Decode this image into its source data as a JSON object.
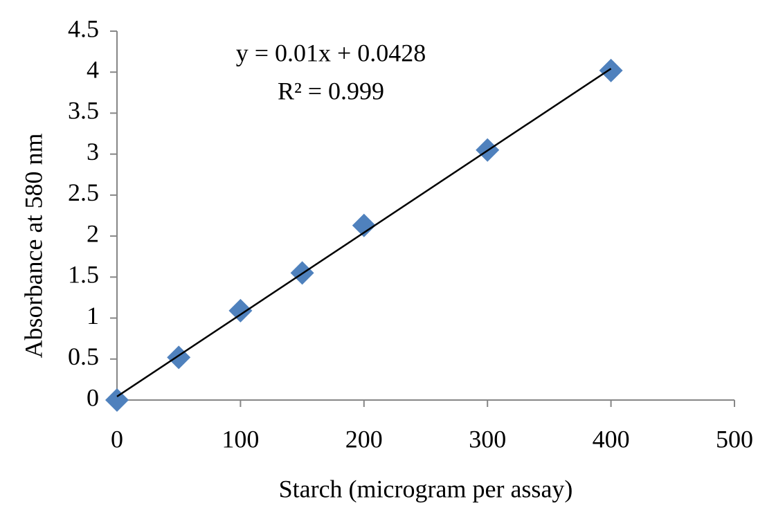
{
  "chart_data": {
    "type": "scatter",
    "x_label": "Starch (microgram per assay)",
    "y_label": "Absorbance at 580 nm",
    "series": [
      {
        "name": "Absorbance",
        "color": "#4f81bd",
        "x": [
          0,
          50,
          100,
          150,
          200,
          300,
          400
        ],
        "values": [
          0,
          0.52,
          1.09,
          1.55,
          2.13,
          3.05,
          4.02
        ]
      }
    ],
    "trendline": {
      "equation": "y = 0.01x + 0.0428",
      "r_squared_label": "R² = 0.999",
      "slope": 0.01,
      "intercept": 0.0428,
      "color": "#000000"
    },
    "xlim": [
      0,
      500
    ],
    "xticks": [
      0,
      100,
      200,
      300,
      400,
      500
    ],
    "ylim": [
      0,
      4.5
    ],
    "yticks": [
      0,
      0.5,
      1,
      1.5,
      2,
      2.5,
      3,
      3.5,
      4,
      4.5
    ],
    "grid": false
  }
}
